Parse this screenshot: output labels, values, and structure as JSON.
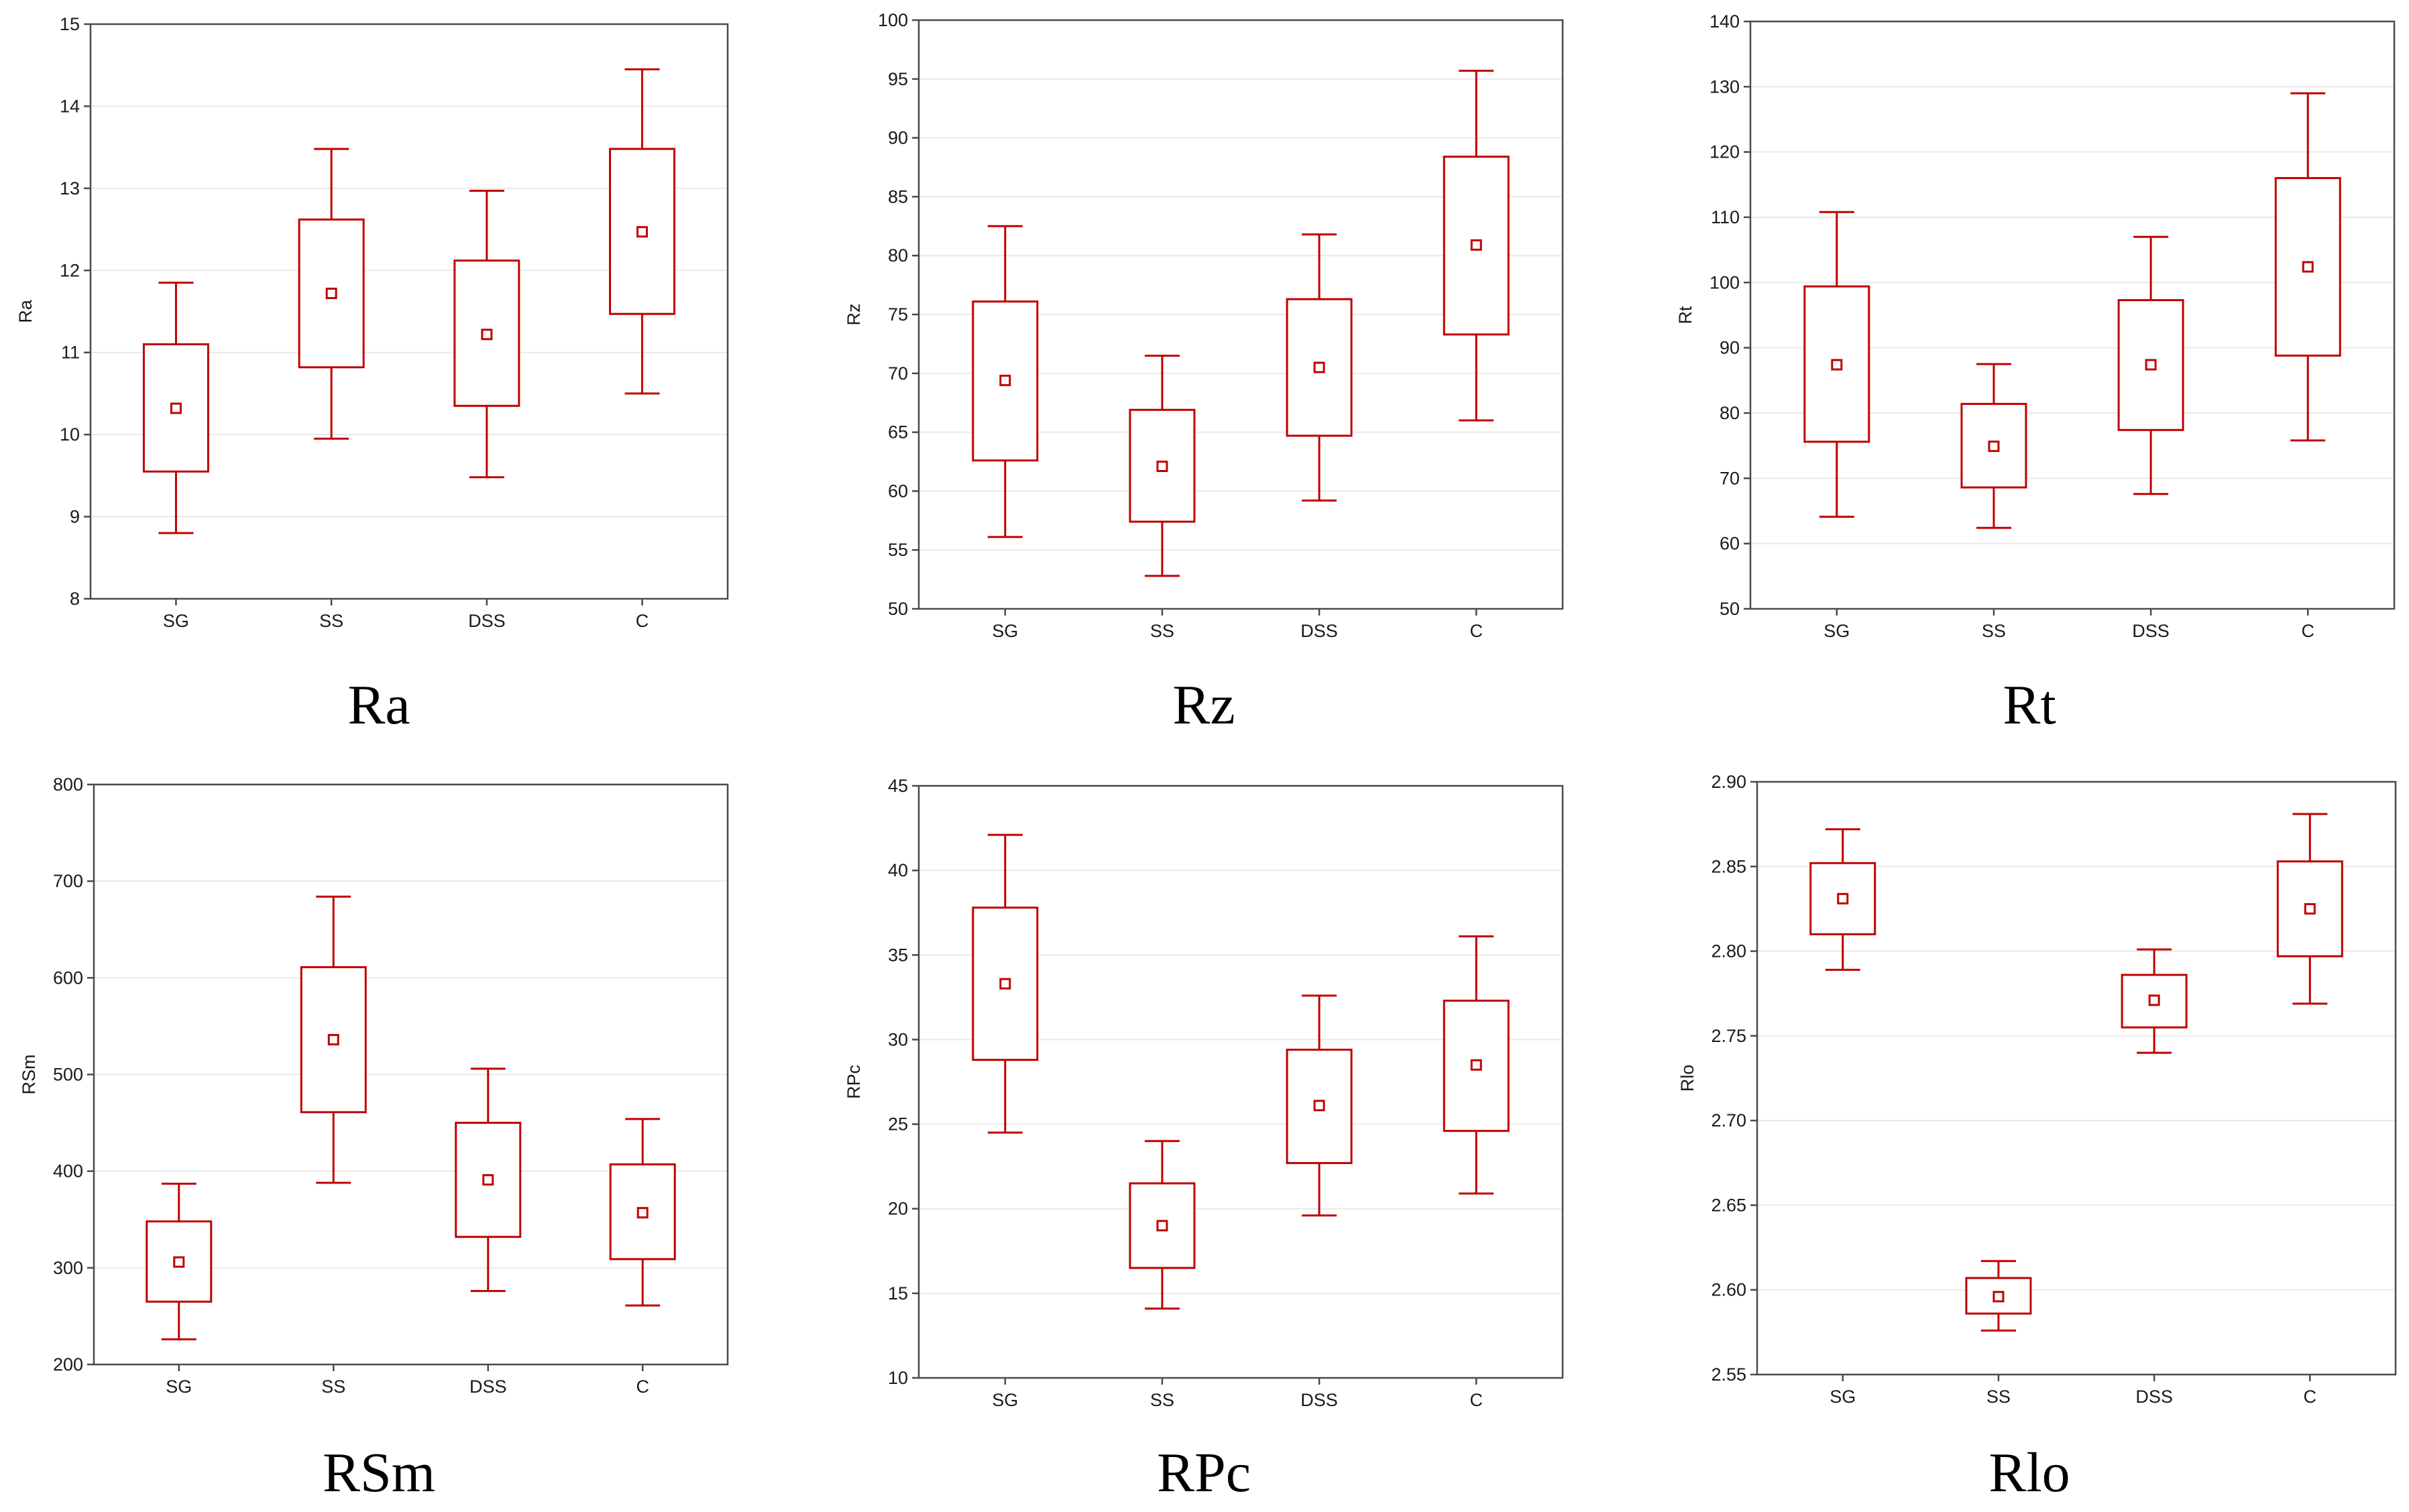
{
  "chart_data": [
    {
      "type": "box",
      "title": "Ra",
      "ylabel": "Ra",
      "xlabel": "",
      "ylim": [
        8,
        15
      ],
      "yticks": [
        8,
        9,
        10,
        11,
        12,
        13,
        14,
        15
      ],
      "yticks_labels": [
        "8",
        "9",
        "10",
        "11",
        "12",
        "13",
        "14",
        "15"
      ],
      "categories": [
        "SG",
        "SS",
        "DSS",
        "C"
      ],
      "boxes": [
        {
          "category": "SG",
          "whisker_low": 8.8,
          "q1": 9.55,
          "mean": 10.32,
          "q3": 11.1,
          "whisker_high": 11.85
        },
        {
          "category": "SS",
          "whisker_low": 9.95,
          "q1": 10.82,
          "mean": 11.72,
          "q3": 12.62,
          "whisker_high": 13.48
        },
        {
          "category": "DSS",
          "whisker_low": 9.48,
          "q1": 10.35,
          "mean": 11.22,
          "q3": 12.12,
          "whisker_high": 12.97
        },
        {
          "category": "C",
          "whisker_low": 10.5,
          "q1": 11.47,
          "mean": 12.47,
          "q3": 13.48,
          "whisker_high": 14.45
        }
      ]
    },
    {
      "type": "box",
      "title": "Rz",
      "ylabel": "Rz",
      "xlabel": "",
      "ylim": [
        50,
        100
      ],
      "yticks": [
        50,
        55,
        60,
        65,
        70,
        75,
        80,
        85,
        90,
        95,
        100
      ],
      "yticks_labels": [
        "50",
        "55",
        "60",
        "65",
        "70",
        "75",
        "80",
        "85",
        "90",
        "95",
        "100"
      ],
      "categories": [
        "SG",
        "SS",
        "DSS",
        "C"
      ],
      "boxes": [
        {
          "category": "SG",
          "whisker_low": 56.1,
          "q1": 62.6,
          "mean": 69.4,
          "q3": 76.1,
          "whisker_high": 82.5
        },
        {
          "category": "SS",
          "whisker_low": 52.8,
          "q1": 57.4,
          "mean": 62.1,
          "q3": 66.9,
          "whisker_high": 71.5
        },
        {
          "category": "DSS",
          "whisker_low": 59.2,
          "q1": 64.7,
          "mean": 70.5,
          "q3": 76.3,
          "whisker_high": 81.8
        },
        {
          "category": "C",
          "whisker_low": 66.0,
          "q1": 73.3,
          "mean": 80.9,
          "q3": 88.4,
          "whisker_high": 95.7
        }
      ]
    },
    {
      "type": "box",
      "title": "Rt",
      "ylabel": "Rt",
      "xlabel": "",
      "ylim": [
        50,
        140
      ],
      "yticks": [
        50,
        60,
        70,
        80,
        90,
        100,
        110,
        120,
        130,
        140
      ],
      "yticks_labels": [
        "50",
        "60",
        "70",
        "80",
        "90",
        "100",
        "110",
        "120",
        "130",
        "140"
      ],
      "categories": [
        "SG",
        "SS",
        "DSS",
        "C"
      ],
      "boxes": [
        {
          "category": "SG",
          "whisker_low": 64.1,
          "q1": 75.6,
          "mean": 87.4,
          "q3": 99.4,
          "whisker_high": 110.8
        },
        {
          "category": "SS",
          "whisker_low": 62.4,
          "q1": 68.6,
          "mean": 74.9,
          "q3": 81.4,
          "whisker_high": 87.5
        },
        {
          "category": "DSS",
          "whisker_low": 67.6,
          "q1": 77.4,
          "mean": 87.4,
          "q3": 97.3,
          "whisker_high": 107.0
        },
        {
          "category": "C",
          "whisker_low": 75.8,
          "q1": 88.8,
          "mean": 102.4,
          "q3": 116.0,
          "whisker_high": 129.0
        }
      ]
    },
    {
      "type": "box",
      "title": "RSm",
      "ylabel": "RSm",
      "xlabel": "",
      "ylim": [
        200,
        800
      ],
      "yticks": [
        200,
        300,
        400,
        500,
        600,
        700,
        800
      ],
      "yticks_labels": [
        "200",
        "300",
        "400",
        "500",
        "600",
        "700",
        "800"
      ],
      "categories": [
        "SG",
        "SS",
        "DSS",
        "C"
      ],
      "boxes": [
        {
          "category": "SG",
          "whisker_low": 226,
          "q1": 265,
          "mean": 306,
          "q3": 348,
          "whisker_high": 387
        },
        {
          "category": "SS",
          "whisker_low": 388,
          "q1": 461,
          "mean": 536,
          "q3": 611,
          "whisker_high": 684
        },
        {
          "category": "DSS",
          "whisker_low": 276,
          "q1": 332,
          "mean": 391,
          "q3": 450,
          "whisker_high": 506
        },
        {
          "category": "C",
          "whisker_low": 261,
          "q1": 309,
          "mean": 357,
          "q3": 407,
          "whisker_high": 454
        }
      ]
    },
    {
      "type": "box",
      "title": "RPc",
      "ylabel": "RPc",
      "xlabel": "",
      "ylim": [
        10,
        45
      ],
      "yticks": [
        10,
        15,
        20,
        25,
        30,
        35,
        40,
        45
      ],
      "yticks_labels": [
        "10",
        "15",
        "20",
        "25",
        "30",
        "35",
        "40",
        "45"
      ],
      "categories": [
        "SG",
        "SS",
        "DSS",
        "C"
      ],
      "boxes": [
        {
          "category": "SG",
          "whisker_low": 24.5,
          "q1": 28.8,
          "mean": 33.3,
          "q3": 37.8,
          "whisker_high": 42.1
        },
        {
          "category": "SS",
          "whisker_low": 14.1,
          "q1": 16.5,
          "mean": 19.0,
          "q3": 21.5,
          "whisker_high": 24.0
        },
        {
          "category": "DSS",
          "whisker_low": 19.6,
          "q1": 22.7,
          "mean": 26.1,
          "q3": 29.4,
          "whisker_high": 32.6
        },
        {
          "category": "C",
          "whisker_low": 20.9,
          "q1": 24.6,
          "mean": 28.5,
          "q3": 32.3,
          "whisker_high": 36.1
        }
      ]
    },
    {
      "type": "box",
      "title": "Rlo",
      "ylabel": "Rlo",
      "xlabel": "",
      "ylim": [
        2.55,
        2.9
      ],
      "yticks": [
        2.55,
        2.6,
        2.65,
        2.7,
        2.75,
        2.8,
        2.85,
        2.9
      ],
      "yticks_labels": [
        "2.55",
        "2.60",
        "2.65",
        "2.70",
        "2.75",
        "2.80",
        "2.85",
        "2.90"
      ],
      "categories": [
        "SG",
        "SS",
        "DSS",
        "C"
      ],
      "boxes": [
        {
          "category": "SG",
          "whisker_low": 2.789,
          "q1": 2.81,
          "mean": 2.831,
          "q3": 2.852,
          "whisker_high": 2.872
        },
        {
          "category": "SS",
          "whisker_low": 2.576,
          "q1": 2.586,
          "mean": 2.596,
          "q3": 2.607,
          "whisker_high": 2.617
        },
        {
          "category": "DSS",
          "whisker_low": 2.74,
          "q1": 2.755,
          "mean": 2.771,
          "q3": 2.786,
          "whisker_high": 2.801
        },
        {
          "category": "C",
          "whisker_low": 2.769,
          "q1": 2.797,
          "mean": 2.825,
          "q3": 2.853,
          "whisker_high": 2.881
        }
      ]
    }
  ],
  "colors": {
    "box": "#c00000",
    "grid": "#e9e9e9",
    "axis": "#4a4a4a",
    "text": "#1a1a1a"
  }
}
